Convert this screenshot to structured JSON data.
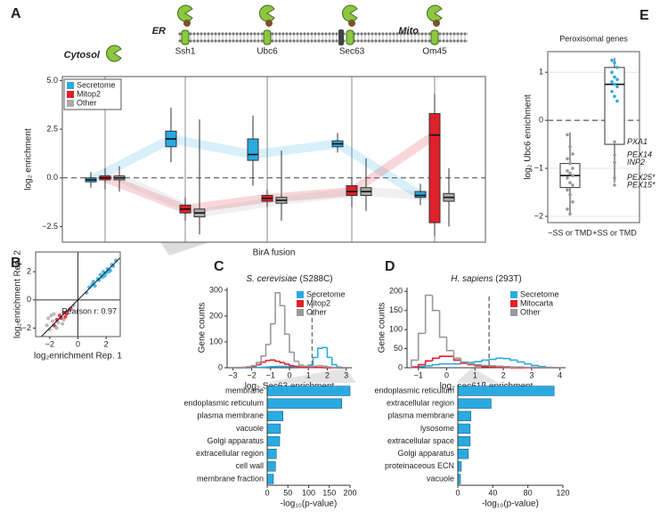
{
  "chart_data": [
    {
      "type": "box",
      "panel": "A",
      "categories": [
        "Cytosol",
        "Ssh1",
        "Ubc6",
        "Sec63",
        "Om45"
      ],
      "annotations": [
        "ER",
        "Mito"
      ],
      "ylabel": "log₂ enrichment",
      "xlabel": "BirA fusion",
      "ylim": [
        -3.3,
        5.2
      ],
      "yticks": [
        {
          "value": -2.5,
          "label": "−2.5"
        },
        {
          "value": 0,
          "label": "0.0"
        },
        {
          "value": 2.5,
          "label": "2.5"
        },
        {
          "value": 5,
          "label": "5.0"
        }
      ],
      "hline": 0,
      "legend": "top-left",
      "series": [
        {
          "name": "Secretome",
          "color": "#29abe2",
          "values": [
            -0.1,
            2.0,
            1.2,
            1.75,
            -0.9
          ],
          "q1": [
            -0.2,
            1.6,
            0.9,
            1.6,
            -1.0
          ],
          "q3": [
            0.0,
            2.4,
            2.0,
            1.9,
            -0.7
          ],
          "low": [
            -0.5,
            0.8,
            -0.4,
            1.3,
            -1.4
          ],
          "high": [
            0.3,
            3.6,
            3.2,
            2.3,
            -0.3
          ]
        },
        {
          "name": "Mitop2",
          "color": "#e0202a",
          "values": [
            0.0,
            -1.6,
            -1.05,
            -0.7,
            2.2
          ],
          "q1": [
            -0.1,
            -1.8,
            -1.2,
            -0.9,
            -2.3
          ],
          "q3": [
            0.1,
            -1.4,
            -0.9,
            -0.4,
            3.3
          ],
          "low": [
            -0.6,
            -2.2,
            -1.5,
            -1.5,
            -3.0
          ],
          "high": [
            0.5,
            -1.0,
            -0.6,
            0.0,
            4.3
          ]
        },
        {
          "name": "Other",
          "color": "#aaaaaa",
          "values": [
            0.0,
            -1.8,
            -1.15,
            -0.7,
            -1.0
          ],
          "q1": [
            -0.1,
            -2.0,
            -1.3,
            -0.9,
            -1.2
          ],
          "q3": [
            0.1,
            -1.6,
            -1.0,
            -0.5,
            -0.8
          ],
          "low": [
            -0.7,
            -2.9,
            -2.2,
            -1.7,
            -2.5
          ],
          "high": [
            0.6,
            3.0,
            1.4,
            1.0,
            0.5
          ]
        }
      ]
    },
    {
      "type": "scatter",
      "panel": "B",
      "xlabel": "log₂enrichment Rep. 1",
      "ylabel": "log₂enrichment Rep. 2",
      "annotation": "Pearson r: 0.97",
      "xlim": [
        -3,
        3
      ],
      "ylim": [
        -2.6,
        3.4
      ],
      "xticks": [
        {
          "value": -2,
          "label": "−2"
        },
        0,
        2
      ],
      "yticks": [
        {
          "value": -2,
          "label": "−2"
        },
        0,
        2
      ],
      "series": [
        {
          "color": "#aaaaaa",
          "x": [
            -2.2,
            -2.0,
            -1.8,
            -1.6,
            -1.4,
            -1.2,
            -1.0,
            -0.8,
            -0.6,
            -1.9,
            -1.5,
            -2.1,
            -1.1,
            -0.3,
            -1.7
          ],
          "y": [
            -1.8,
            -2.1,
            -1.5,
            -1.9,
            -1.6,
            -1.2,
            -1.4,
            -0.9,
            -0.7,
            -1.1,
            -2.0,
            -1.3,
            -1.7,
            -0.4,
            -1.0
          ]
        },
        {
          "color": "#e0202a",
          "x": [
            -1.5,
            -1.2,
            -1.0,
            -0.8,
            -1.7,
            -0.5,
            -1.3,
            -0.9
          ],
          "y": [
            -1.4,
            -1.3,
            -0.9,
            -1.0,
            -1.8,
            -0.6,
            -1.1,
            -1.2
          ]
        },
        {
          "color": "#29abe2",
          "x": [
            0.8,
            1.0,
            1.2,
            1.4,
            1.5,
            1.7,
            1.8,
            2.0,
            2.1,
            2.2,
            2.4,
            2.5,
            1.6,
            1.9,
            2.3,
            0.6,
            1.1,
            2.7
          ],
          "y": [
            0.9,
            1.1,
            1.0,
            1.5,
            1.4,
            1.6,
            2.0,
            1.9,
            2.2,
            2.0,
            2.5,
            2.4,
            1.8,
            1.7,
            2.1,
            0.5,
            1.3,
            2.8
          ]
        }
      ]
    },
    {
      "type": "histogram",
      "panel": "C",
      "title": "S. cerevisiae",
      "subtitle": "(S288C)",
      "ylabel": "Gene counts",
      "xlabel": "log₂ Sec63 enrichment",
      "bins": [
        -3,
        -2.75,
        -2.5,
        -2.25,
        -2,
        -1.75,
        -1.5,
        -1.25,
        -1,
        -0.75,
        -0.5,
        -0.25,
        0,
        0.25,
        0.5,
        0.75,
        1,
        1.25,
        1.5,
        1.75,
        2,
        2.25,
        2.5,
        2.75,
        3
      ],
      "xlim": [
        -3.3,
        3.3
      ],
      "ylim": [
        0,
        310
      ],
      "xticks": [
        {
          "value": -3,
          "label": "−3"
        },
        {
          "value": -2,
          "label": "−2"
        },
        {
          "value": -1,
          "label": "−1"
        },
        0,
        1,
        2,
        3
      ],
      "yticks": [
        0,
        100,
        200,
        300
      ],
      "threshold": 1.2,
      "legend": "top-right",
      "series": [
        {
          "name": "Secretome",
          "color": "#29abe2",
          "values": [
            0,
            0,
            0,
            0,
            1,
            1,
            2,
            3,
            4,
            5,
            5,
            5,
            4,
            3,
            2,
            3,
            10,
            40,
            75,
            78,
            40,
            12,
            3,
            0
          ]
        },
        {
          "name": "Mitop2",
          "color": "#e0202a",
          "values": [
            0,
            0,
            1,
            2,
            5,
            12,
            22,
            28,
            30,
            25,
            20,
            14,
            8,
            5,
            3,
            2,
            1,
            1,
            1,
            0,
            0,
            0,
            0,
            0
          ]
        },
        {
          "name": "Other",
          "color": "#999999",
          "values": [
            0,
            1,
            2,
            4,
            8,
            20,
            45,
            90,
            170,
            290,
            240,
            130,
            60,
            25,
            10,
            6,
            5,
            6,
            8,
            6,
            3,
            1,
            0,
            0
          ]
        }
      ]
    },
    {
      "type": "hbar",
      "categories": [
        "membrane",
        "endoplasmic reticulum",
        "plasma membrane",
        "vacuole",
        "Golgi apparatus",
        "extracellular region",
        "cell wall",
        "membrane fraction"
      ],
      "values": [
        200,
        180,
        38,
        32,
        30,
        22,
        20,
        15
      ],
      "color": "#29abe2",
      "xlim": [
        0,
        200
      ],
      "xticks": [
        0,
        50,
        100,
        150,
        200
      ],
      "xlabel": "-log₁₀(p-value)"
    },
    {
      "type": "histogram",
      "panel": "D",
      "title": "H. sapiens",
      "subtitle": "(293T)",
      "ylabel": "Gene counts",
      "xlabel": "log₂ sec61β enrichment",
      "bins": [
        -1.25,
        -1,
        -0.75,
        -0.5,
        -0.25,
        0,
        0.25,
        0.5,
        0.75,
        1,
        1.25,
        1.5,
        1.75,
        2,
        2.25,
        2.5,
        2.75,
        3,
        3.25,
        3.5,
        3.75,
        4
      ],
      "xlim": [
        -1.4,
        4.2
      ],
      "ylim": [
        0,
        210
      ],
      "xticks": [
        {
          "value": -1,
          "label": "−1"
        },
        0,
        1,
        2,
        3,
        4
      ],
      "yticks": [
        0,
        50,
        100,
        150,
        200
      ],
      "threshold": 1.5,
      "legend": "top-right",
      "series": [
        {
          "name": "Secretome",
          "color": "#29abe2",
          "values": [
            1,
            3,
            5,
            8,
            10,
            10,
            10,
            12,
            14,
            16,
            20,
            22,
            25,
            24,
            20,
            15,
            10,
            6,
            3,
            1,
            0
          ]
        },
        {
          "name": "Mitocarta",
          "color": "#e0202a",
          "values": [
            2,
            8,
            18,
            25,
            30,
            30,
            20,
            12,
            8,
            5,
            3,
            2,
            1,
            1,
            0,
            0,
            0,
            0,
            0,
            0,
            0
          ]
        },
        {
          "name": "Other",
          "color": "#999999",
          "values": [
            20,
            90,
            190,
            150,
            80,
            45,
            25,
            15,
            10,
            8,
            6,
            5,
            4,
            3,
            2,
            2,
            1,
            1,
            0,
            0,
            0
          ]
        }
      ]
    },
    {
      "type": "hbar",
      "categories": [
        "endoplasmic reticulum",
        "extracellular region",
        "plasma membrane",
        "lysosome",
        "extracellular space",
        "Golgi apparatus",
        "proteinaceous ECN",
        "vacuole"
      ],
      "values": [
        110,
        38,
        15,
        14,
        14,
        12,
        4,
        3
      ],
      "color": "#29abe2",
      "xlim": [
        0,
        120
      ],
      "xticks": [
        0,
        40,
        80,
        120
      ],
      "xlabel": "-log₁₀(p-value)"
    },
    {
      "type": "boxplot",
      "panel": "E",
      "title": "Peroxisomal genes",
      "ylabel": "log₂ Ubc6 enrichment",
      "categories": [
        "−SS or TMD",
        "+SS or TMD"
      ],
      "ylim": [
        -2.13,
        1.43
      ],
      "yticks": [
        {
          "value": -2,
          "label": "−2"
        },
        {
          "value": -1,
          "label": "−1"
        },
        0,
        1
      ],
      "hline": 0,
      "values": [
        -1.15,
        0.75
      ],
      "q1": [
        -1.4,
        -0.5
      ],
      "q3": [
        -0.9,
        1.1
      ],
      "low": [
        -1.95,
        -1.3
      ],
      "high": [
        -0.25,
        1.3
      ],
      "point_colors": [
        "#999999",
        "#29abe2"
      ],
      "points": [
        [
          -0.3,
          -0.55,
          -0.7,
          -0.8,
          -0.9,
          -1.0,
          -1.05,
          -1.1,
          -1.15,
          -1.2,
          -1.3,
          -1.35,
          -1.45,
          -1.55,
          -1.7,
          -1.85,
          -1.95
        ],
        [
          1.25,
          1.2,
          1.1,
          1.0,
          0.9,
          0.85,
          0.8,
          0.75,
          0.7,
          0.6,
          0.5,
          0.4
        ]
      ],
      "labeled_points": [
        {
          "label": "PXA1",
          "value": -0.45
        },
        {
          "label": "PEX14",
          "value": -0.72
        },
        {
          "label": "INP2",
          "value": -0.88
        },
        {
          "label": "PEX25*",
          "value": -1.2
        },
        {
          "label": "PEX15*",
          "value": -1.35
        }
      ]
    }
  ]
}
